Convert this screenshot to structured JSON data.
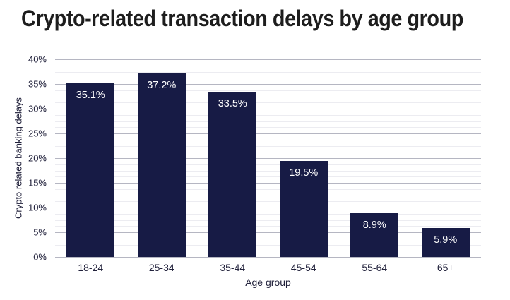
{
  "chart_data": {
    "type": "bar",
    "title": "Crypto-related transaction delays by age group",
    "categories": [
      "18-24",
      "25-34",
      "35-44",
      "45-54",
      "55-64",
      "65+"
    ],
    "values": [
      35.1,
      37.2,
      33.5,
      19.5,
      8.9,
      5.9
    ],
    "value_labels": [
      "35.1%",
      "37.2%",
      "33.5%",
      "19.5%",
      "8.9%",
      "5.9%"
    ],
    "xlabel": "Age group",
    "ylabel": "Crypto related banking delays",
    "ylim": [
      0,
      40
    ],
    "ytick_step": 5,
    "ytick_labels": [
      "0%",
      "5%",
      "10%",
      "15%",
      "20%",
      "25%",
      "30%",
      "35%",
      "40%"
    ],
    "grid": "horizontal, major every 5% with 3 faint minor lines between",
    "minor_per_major": 4,
    "legend": "none",
    "colors": {
      "background": "#ffffff",
      "bar": "#171b45",
      "value_label": "#ffffff",
      "grid_major": "#b5b6c2",
      "grid_minor": "#ececf1",
      "title_text": "#1d1d1d",
      "axis_text": "#21213b"
    }
  }
}
